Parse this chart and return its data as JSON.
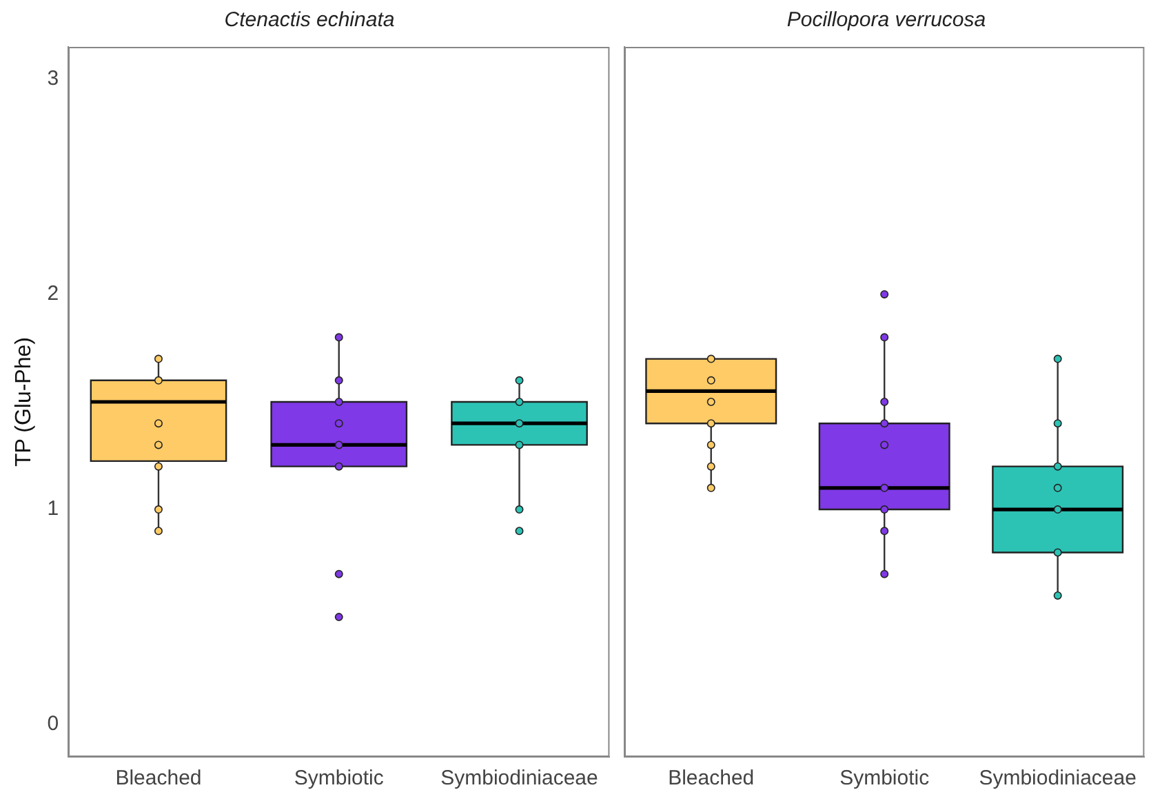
{
  "chart_data": [
    {
      "type": "box",
      "title": "Ctenactis echinata",
      "ylabel": "TP (Glu-Phe)",
      "categories": [
        "Bleached",
        "Symbiotic",
        "Symbiodiniaceae"
      ],
      "ylim": [
        -0.15,
        3.15
      ],
      "yticks": [
        0,
        1,
        2,
        3
      ],
      "grid": false,
      "legend": false,
      "marker": "circle",
      "series": [
        {
          "type": "box",
          "colors": [
            "#fecb66",
            "#7f39e6",
            "#2cc3b5"
          ],
          "boxes": [
            {
              "low": 0.9,
              "q1": 1.225,
              "median": 1.5,
              "q3": 1.6,
              "high": 1.7
            },
            {
              "low": 1.2,
              "q1": 1.2,
              "median": 1.3,
              "q3": 1.5,
              "high": 1.8
            },
            {
              "low": 1.0,
              "q1": 1.3,
              "median": 1.4,
              "q3": 1.5,
              "high": 1.6
            }
          ]
        },
        {
          "type": "scatter",
          "x": [
            "Bleached",
            "Bleached",
            "Bleached",
            "Bleached",
            "Bleached",
            "Bleached",
            "Bleached",
            "Symbiotic",
            "Symbiotic",
            "Symbiotic",
            "Symbiotic",
            "Symbiotic",
            "Symbiotic",
            "Symbiotic",
            "Symbiotic",
            "Symbiodiniaceae",
            "Symbiodiniaceae",
            "Symbiodiniaceae",
            "Symbiodiniaceae",
            "Symbiodiniaceae",
            "Symbiodiniaceae"
          ],
          "values": [
            1.7,
            1.6,
            1.4,
            1.3,
            1.2,
            1.0,
            0.9,
            1.8,
            1.6,
            1.5,
            1.4,
            1.3,
            1.2,
            0.7,
            0.5,
            1.6,
            1.5,
            1.4,
            1.3,
            1.0,
            0.9
          ],
          "colors": [
            "#fecb66",
            "#fecb66",
            "#fecb66",
            "#fecb66",
            "#fecb66",
            "#fecb66",
            "#fecb66",
            "#7f39e6",
            "#7f39e6",
            "#7f39e6",
            "#7f39e6",
            "#7f39e6",
            "#7f39e6",
            "#7f39e6",
            "#7f39e6",
            "#2cc3b5",
            "#2cc3b5",
            "#2cc3b5",
            "#2cc3b5",
            "#2cc3b5",
            "#2cc3b5"
          ]
        }
      ]
    },
    {
      "type": "box",
      "title": "Pocillopora verrucosa",
      "categories": [
        "Bleached",
        "Symbiotic",
        "Symbiodiniaceae"
      ],
      "ylim": [
        -0.15,
        3.15
      ],
      "tick_labels": "x",
      "grid": false,
      "legend": false,
      "marker": "circle",
      "series": [
        {
          "type": "box",
          "colors": [
            "#fecb66",
            "#7f39e6",
            "#2cc3b5"
          ],
          "boxes": [
            {
              "low": 1.1,
              "q1": 1.4,
              "median": 1.55,
              "q3": 1.7,
              "high": 1.7
            },
            {
              "low": 0.7,
              "q1": 1.0,
              "median": 1.1,
              "q3": 1.4,
              "high": 1.8
            },
            {
              "low": 0.6,
              "q1": 0.8,
              "median": 1.0,
              "q3": 1.2,
              "high": 1.7
            }
          ]
        },
        {
          "type": "scatter",
          "x": [
            "Bleached",
            "Bleached",
            "Bleached",
            "Bleached",
            "Bleached",
            "Bleached",
            "Bleached",
            "Symbiotic",
            "Symbiotic",
            "Symbiotic",
            "Symbiotic",
            "Symbiotic",
            "Symbiotic",
            "Symbiotic",
            "Symbiotic",
            "Symbiotic",
            "Symbiodiniaceae",
            "Symbiodiniaceae",
            "Symbiodiniaceae",
            "Symbiodiniaceae",
            "Symbiodiniaceae",
            "Symbiodiniaceae",
            "Symbiodiniaceae"
          ],
          "values": [
            1.7,
            1.6,
            1.5,
            1.4,
            1.3,
            1.2,
            1.1,
            2.0,
            1.8,
            1.5,
            1.4,
            1.3,
            1.1,
            1.0,
            0.9,
            0.7,
            1.7,
            1.4,
            1.2,
            1.1,
            1.0,
            0.8,
            0.6
          ],
          "colors": [
            "#fecb66",
            "#fecb66",
            "#fecb66",
            "#fecb66",
            "#fecb66",
            "#fecb66",
            "#fecb66",
            "#7f39e6",
            "#7f39e6",
            "#7f39e6",
            "#7f39e6",
            "#7f39e6",
            "#7f39e6",
            "#7f39e6",
            "#7f39e6",
            "#7f39e6",
            "#2cc3b5",
            "#2cc3b5",
            "#2cc3b5",
            "#2cc3b5",
            "#2cc3b5",
            "#2cc3b5",
            "#2cc3b5"
          ]
        }
      ]
    }
  ]
}
